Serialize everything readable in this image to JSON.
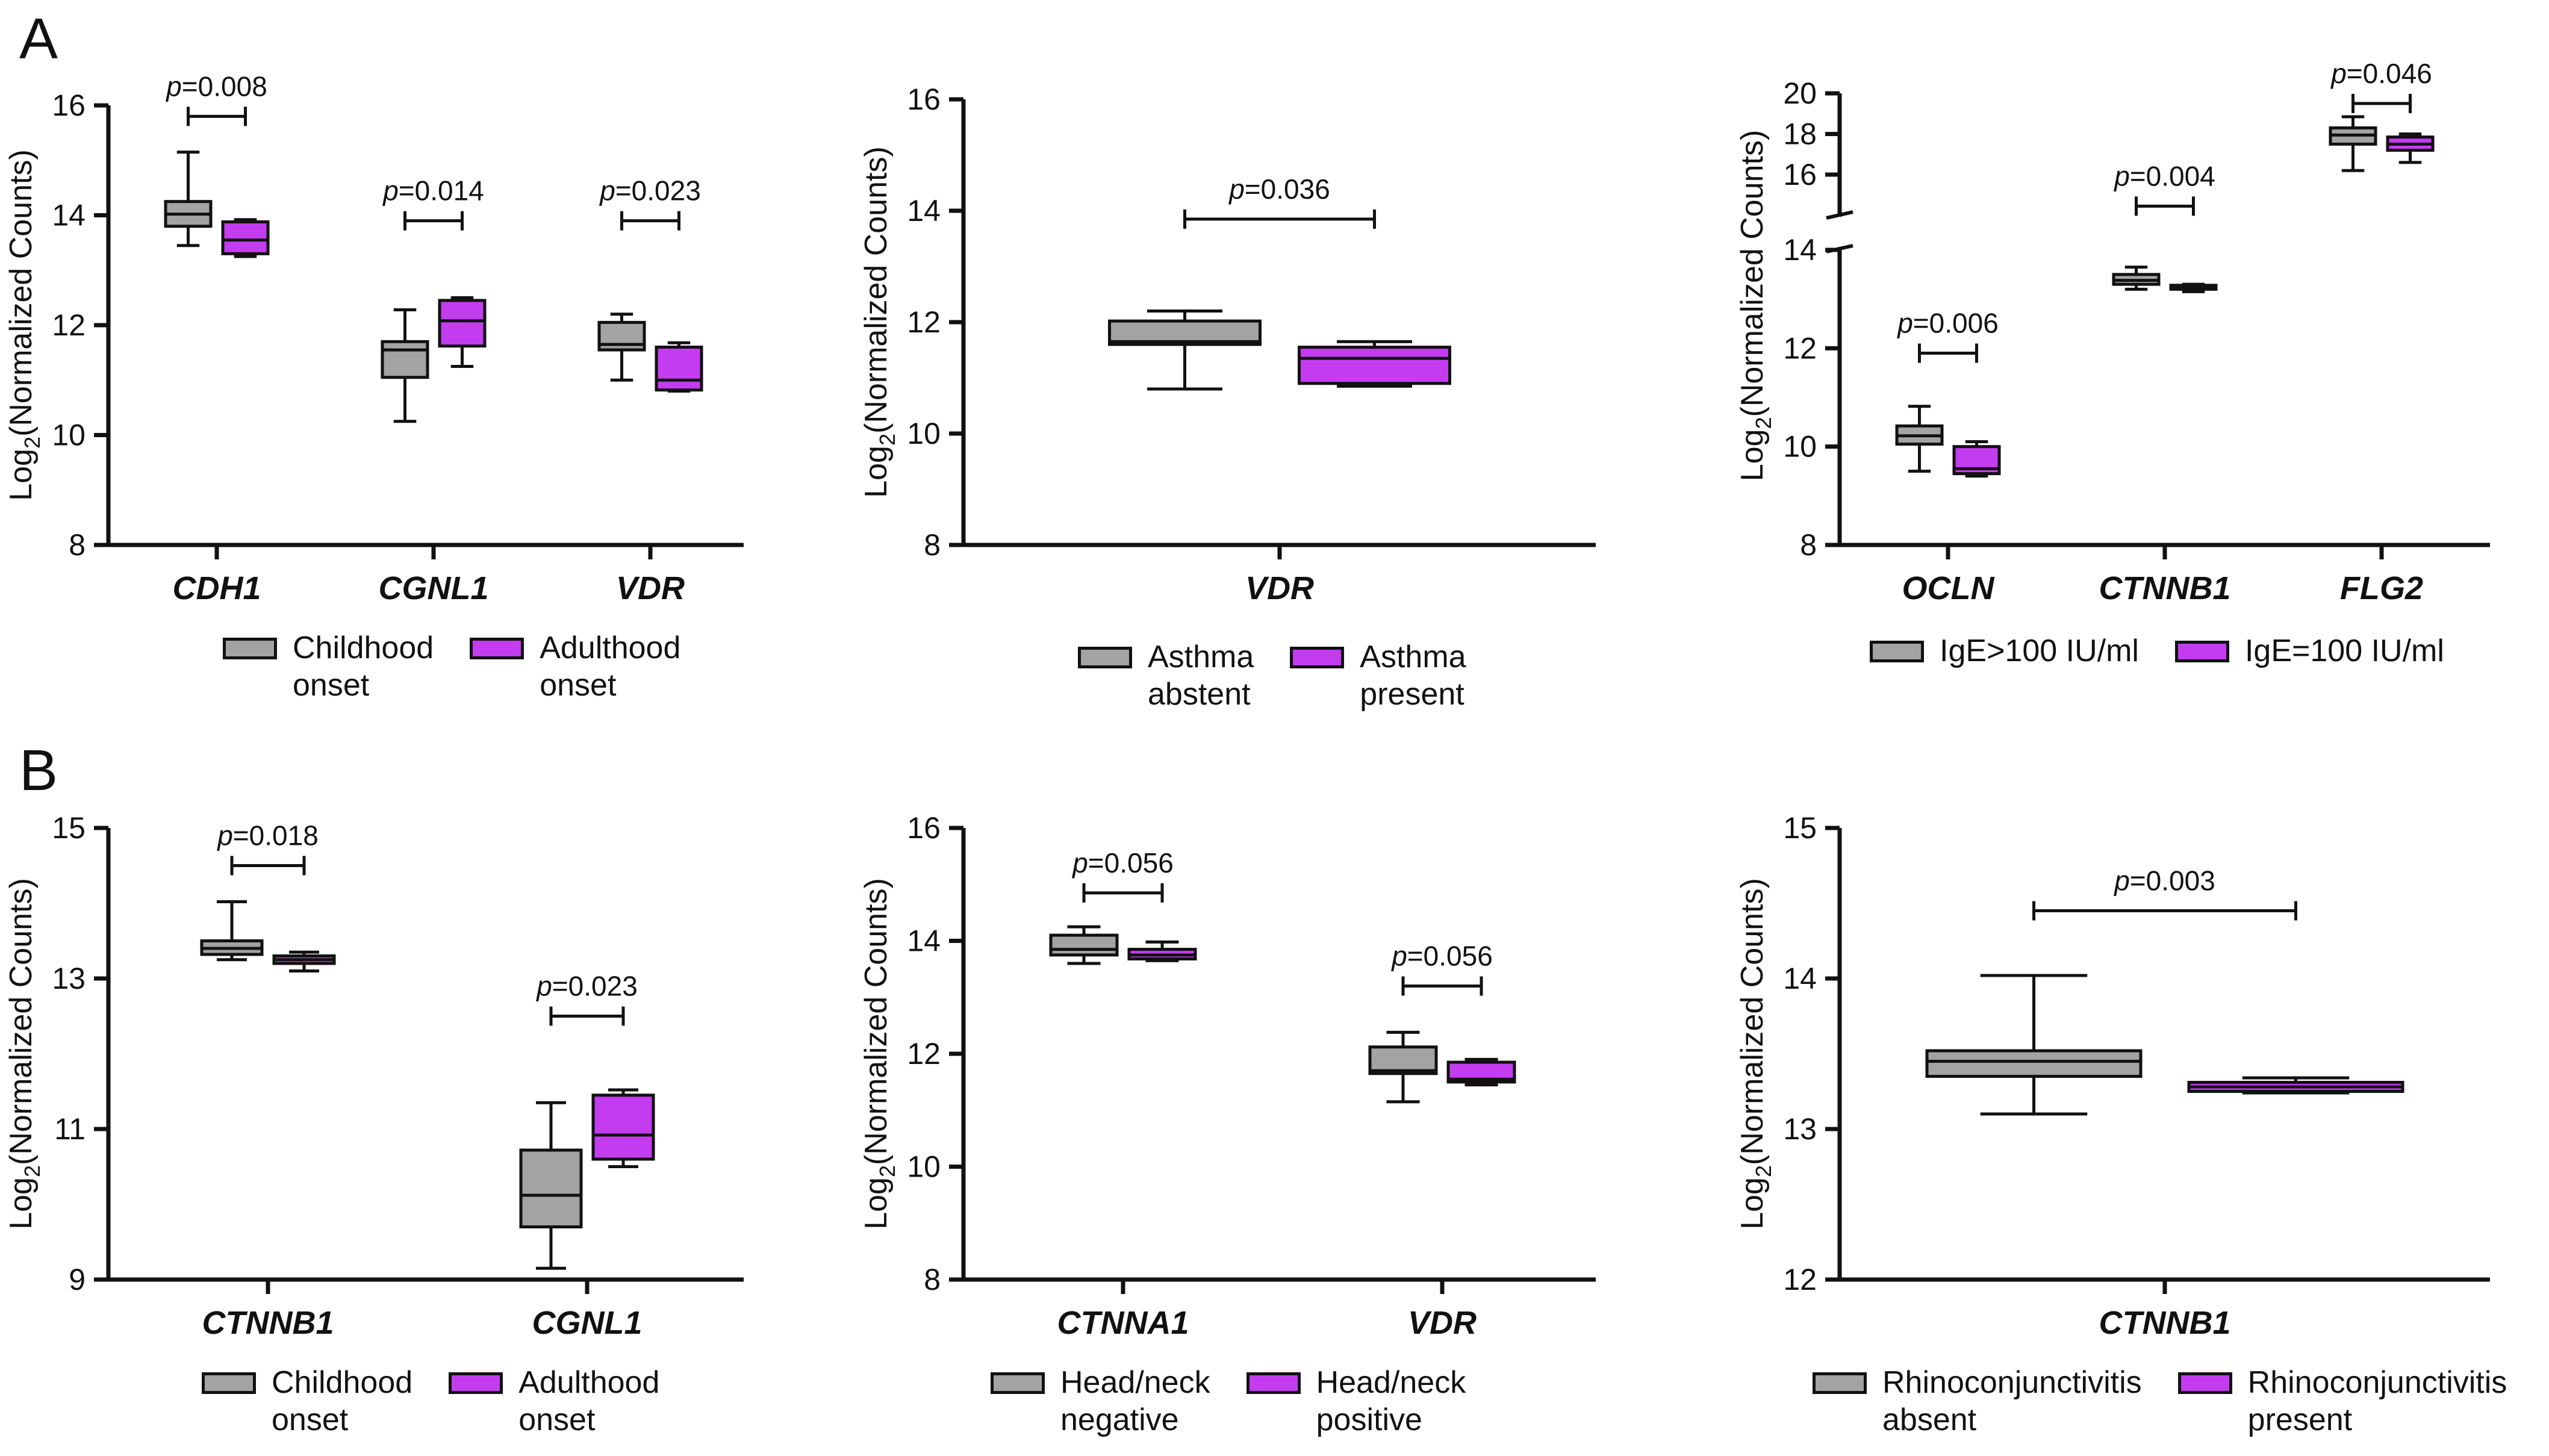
{
  "colors": {
    "group1": "#a3a3a3",
    "group2": "#c33cf0",
    "axis": "#111111"
  },
  "panels": [
    {
      "letter": "A"
    },
    {
      "letter": "B"
    }
  ],
  "ylabel_prefix": "Log",
  "ylabel_sub": "2",
  "ylabel_suffix": "(Normalized Counts)",
  "chart_data": [
    {
      "type": "box",
      "panel": "A",
      "ylim": [
        8,
        16
      ],
      "yticks": [
        8,
        10,
        12,
        14,
        16
      ],
      "categories": [
        "CDH1",
        "CGNL1",
        "VDR"
      ],
      "legend": [
        "Childhood\nonset",
        "Adulthood\nonset"
      ],
      "boxes": [
        [
          {
            "min": 13.45,
            "q1": 13.8,
            "median": 14.02,
            "q3": 14.25,
            "max": 15.15
          },
          {
            "min": 13.25,
            "q1": 13.3,
            "median": 13.55,
            "q3": 13.88,
            "max": 13.92
          }
        ],
        [
          {
            "min": 10.25,
            "q1": 11.05,
            "median": 11.55,
            "q3": 11.7,
            "max": 12.28
          },
          {
            "min": 11.25,
            "q1": 11.62,
            "median": 12.08,
            "q3": 12.45,
            "max": 12.5
          }
        ],
        [
          {
            "min": 11.0,
            "q1": 11.55,
            "median": 11.65,
            "q3": 12.05,
            "max": 12.2
          },
          {
            "min": 10.8,
            "q1": 10.82,
            "median": 11.0,
            "q3": 11.6,
            "max": 11.68
          }
        ]
      ],
      "annotations": [
        {
          "cat": 0,
          "y": 15.8,
          "p": "=0.008"
        },
        {
          "cat": 1,
          "y": 13.9,
          "p": "=0.014"
        },
        {
          "cat": 2,
          "y": 13.9,
          "p": "=0.023"
        }
      ]
    },
    {
      "type": "box",
      "panel": "A",
      "ylim": [
        8,
        16
      ],
      "yticks": [
        8,
        10,
        12,
        14,
        16
      ],
      "categories": [
        "VDR"
      ],
      "legend": [
        "Asthma\nabstent",
        "Asthma\npresent"
      ],
      "boxes": [
        [
          {
            "min": 10.8,
            "q1": 11.6,
            "median": 11.65,
            "q3": 12.02,
            "max": 12.2
          },
          {
            "min": 10.85,
            "q1": 10.9,
            "median": 11.35,
            "q3": 11.55,
            "max": 11.65
          }
        ]
      ],
      "annotations": [
        {
          "cat": 0,
          "y": 13.85,
          "p": "=0.036"
        }
      ]
    },
    {
      "type": "box",
      "panel": "A",
      "broken_axis": true,
      "ylim": [
        8,
        14
      ],
      "yticks": [
        8,
        10,
        12,
        14
      ],
      "ylim_upper": [
        15,
        20
      ],
      "yticks_upper": [
        16,
        18,
        20
      ],
      "categories": [
        "OCLN",
        "CTNNB1",
        "FLG2"
      ],
      "legend": [
        "IgE>100 IU/ml",
        "IgE=100 IU/ml"
      ],
      "boxes": [
        [
          {
            "min": 9.5,
            "q1": 10.05,
            "median": 10.22,
            "q3": 10.42,
            "max": 10.82
          },
          {
            "min": 9.4,
            "q1": 9.45,
            "median": 9.55,
            "q3": 10.0,
            "max": 10.1
          }
        ],
        [
          {
            "min": 13.2,
            "q1": 13.3,
            "median": 13.38,
            "q3": 13.5,
            "max": 13.65
          },
          {
            "min": 13.15,
            "q1": 13.2,
            "median": 13.23,
            "q3": 13.28,
            "max": 13.3
          }
        ],
        [
          {
            "min": 16.2,
            "q1": 17.5,
            "median": 17.95,
            "q3": 18.3,
            "max": 18.85
          },
          {
            "min": 16.6,
            "q1": 17.2,
            "median": 17.5,
            "q3": 17.85,
            "max": 18.0
          }
        ]
      ],
      "annotations": [
        {
          "cat": 0,
          "y": 11.9,
          "p": "=0.006"
        },
        {
          "cat": 1,
          "y": 14.45,
          "p": "=0.004"
        },
        {
          "cat": 2,
          "y": 19.5,
          "p": "=0.046"
        }
      ]
    },
    {
      "type": "box",
      "panel": "B",
      "ylim": [
        9,
        15
      ],
      "yticks": [
        9,
        11,
        13,
        15
      ],
      "categories": [
        "CTNNB1",
        "CGNL1"
      ],
      "legend": [
        "Childhood\nonset",
        "Adulthood\nonset"
      ],
      "boxes": [
        [
          {
            "min": 13.25,
            "q1": 13.32,
            "median": 13.4,
            "q3": 13.5,
            "max": 14.02
          },
          {
            "min": 13.1,
            "q1": 13.2,
            "median": 13.25,
            "q3": 13.3,
            "max": 13.35
          }
        ],
        [
          {
            "min": 9.15,
            "q1": 9.7,
            "median": 10.12,
            "q3": 10.72,
            "max": 11.35
          },
          {
            "min": 10.5,
            "q1": 10.6,
            "median": 10.92,
            "q3": 11.45,
            "max": 11.52
          }
        ]
      ],
      "annotations": [
        {
          "cat": 0,
          "y": 14.5,
          "p": "=0.018"
        },
        {
          "cat": 1,
          "y": 12.5,
          "p": "=0.023"
        }
      ]
    },
    {
      "type": "box",
      "panel": "B",
      "ylim": [
        8,
        16
      ],
      "yticks": [
        8,
        10,
        12,
        14,
        16
      ],
      "categories": [
        "CTNNA1",
        "VDR"
      ],
      "legend": [
        "Head/neck\nnegative",
        "Head/neck\npositive"
      ],
      "boxes": [
        [
          {
            "min": 13.6,
            "q1": 13.75,
            "median": 13.85,
            "q3": 14.1,
            "max": 14.25
          },
          {
            "min": 13.65,
            "q1": 13.68,
            "median": 13.75,
            "q3": 13.85,
            "max": 13.98
          }
        ],
        [
          {
            "min": 11.15,
            "q1": 11.65,
            "median": 11.7,
            "q3": 12.12,
            "max": 12.38
          },
          {
            "min": 11.45,
            "q1": 11.5,
            "median": 11.55,
            "q3": 11.85,
            "max": 11.9
          }
        ]
      ],
      "annotations": [
        {
          "cat": 0,
          "y": 14.85,
          "p": "=0.056"
        },
        {
          "cat": 1,
          "y": 13.2,
          "p": "=0.056"
        }
      ]
    },
    {
      "type": "box",
      "panel": "B",
      "ylim": [
        12,
        15
      ],
      "yticks": [
        12,
        13,
        14,
        15
      ],
      "categories": [
        "CTNNB1"
      ],
      "legend": [
        "Rhinoconjunctivitis\nabsent",
        "Rhinoconjunctivitis\npresent"
      ],
      "boxes": [
        [
          {
            "min": 13.1,
            "q1": 13.35,
            "median": 13.45,
            "q3": 13.52,
            "max": 14.02
          },
          {
            "min": 13.24,
            "q1": 13.25,
            "median": 13.28,
            "q3": 13.31,
            "max": 13.34
          }
        ]
      ],
      "annotations": [
        {
          "cat": 0,
          "y": 14.45,
          "p": "=0.003"
        }
      ]
    }
  ]
}
